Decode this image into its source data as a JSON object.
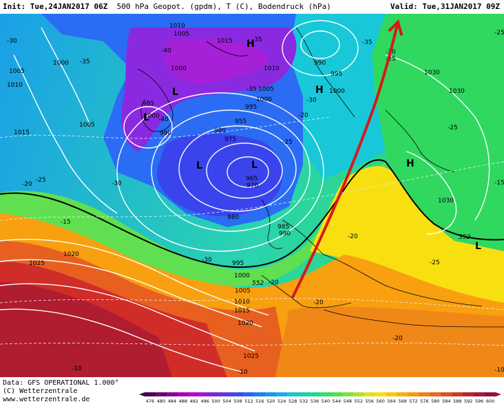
{
  "header": {
    "init_label": "Init:",
    "init_value": "Tue,24JAN2017 06Z",
    "title": "500 hPa Geopot. (gpdm), T (C), Bodendruck (hPa)",
    "valid_label": "Valid:",
    "valid_value": "Tue,31JAN2017 09Z"
  },
  "footer": {
    "data_line": "Data: GFS OPERATIONAL 1.000°",
    "copyright": "(C) Wetterzentrale",
    "url": "www.wetterzentrale.de"
  },
  "map": {
    "pressure_labels": [
      "1010",
      "1005",
      "1015",
      "1000",
      "990",
      "995",
      "1000",
      "1010",
      "1030",
      "1030",
      "1000",
      "1005",
      "1010",
      "1015",
      "1005",
      "1000",
      "995",
      "1000",
      "1005",
      "985",
      "990",
      "980",
      "975",
      "965",
      "970",
      "955",
      "980",
      "985",
      "990",
      "995",
      "1000",
      "1005",
      "1010",
      "1015",
      "1020",
      "1025",
      "1020",
      "1025",
      "1030"
    ],
    "temp_labels": [
      "-30",
      "-35",
      "-40",
      "-35",
      "-40",
      "-35",
      "-35",
      "-30",
      "-30",
      "-25",
      "-25",
      "-20",
      "-30",
      "-25",
      "-30",
      "-25",
      "-20",
      "-15",
      "-25",
      "-20",
      "-20",
      "-20",
      "-20",
      "-25",
      "-15",
      "-10",
      "-10",
      "-10"
    ],
    "geopotential_labels": [
      "552",
      "552"
    ],
    "low_symbol": "L",
    "high_symbol": "H"
  },
  "legend": {
    "values": [
      "476",
      "480",
      "484",
      "488",
      "492",
      "496",
      "500",
      "504",
      "508",
      "512",
      "516",
      "520",
      "524",
      "528",
      "532",
      "536",
      "540",
      "544",
      "548",
      "552",
      "556",
      "560",
      "564",
      "568",
      "572",
      "576",
      "580",
      "584",
      "588",
      "592",
      "596",
      "600"
    ],
    "colors": [
      "#4a0050",
      "#6a0070",
      "#8a0090",
      "#a400b0",
      "#b800c8",
      "#9c18d8",
      "#7a28e0",
      "#5a38e8",
      "#3a4cf0",
      "#2a64f8",
      "#1c7ef8",
      "#1898f0",
      "#18b0e8",
      "#18c4d0",
      "#18d0b0",
      "#20d890",
      "#30e070",
      "#50e050",
      "#80e040",
      "#b0e030",
      "#e0e020",
      "#f8e010",
      "#f8c810",
      "#f8b010",
      "#f89810",
      "#f08018",
      "#e86820",
      "#e05020",
      "#d03828",
      "#c02030",
      "#a81838",
      "#901040"
    ]
  }
}
